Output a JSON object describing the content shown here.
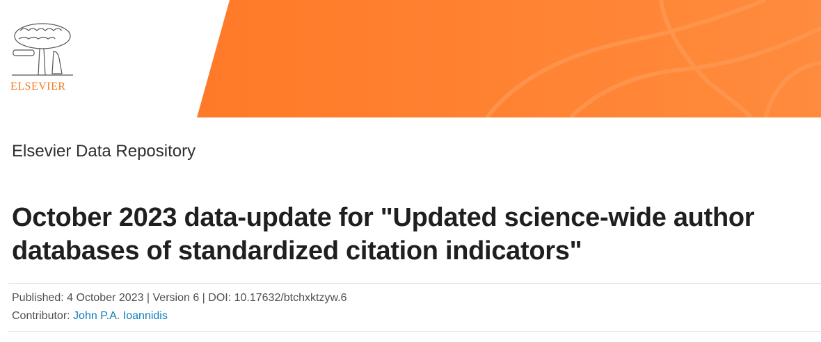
{
  "header": {
    "logo_text": "ELSEVIER",
    "brand_color": "#FF7A28",
    "repository_name": "Elsevier Data Repository"
  },
  "dataset": {
    "title": "October 2023 data-update for \"Updated science-wide author databases of standardized citation indicators\"",
    "published_line": "Published: 4 October 2023 | Version 6 | DOI: 10.17632/btchxktzyw.6",
    "contributor_label": "Contributor:",
    "contributor_name": "John P.A. Ioannidis"
  }
}
